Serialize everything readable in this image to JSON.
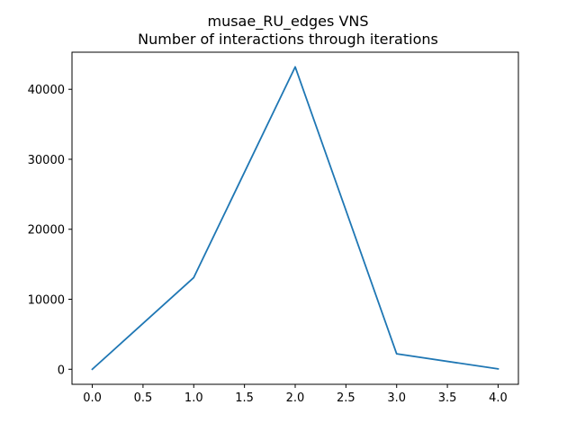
{
  "chart_data": {
    "type": "line",
    "title_line1": "musae_RU_edges VNS",
    "title_line2": "Number of interactions through iterations",
    "xlabel": "",
    "ylabel": "",
    "xlim": [
      -0.2,
      4.2
    ],
    "ylim": [
      -2150,
      45300
    ],
    "x_ticks": [
      0.0,
      0.5,
      1.0,
      1.5,
      2.0,
      2.5,
      3.0,
      3.5,
      4.0
    ],
    "x_tick_labels": [
      "0.0",
      "0.5",
      "1.0",
      "1.5",
      "2.0",
      "2.5",
      "3.0",
      "3.5",
      "4.0"
    ],
    "y_ticks": [
      0,
      10000,
      20000,
      30000,
      40000
    ],
    "y_tick_labels": [
      "0",
      "10000",
      "20000",
      "30000",
      "40000"
    ],
    "grid": false,
    "series": [
      {
        "color": "#1f77b4",
        "x": [
          0,
          1,
          2,
          3,
          4
        ],
        "values": [
          0,
          13100,
          43200,
          2200,
          50
        ]
      }
    ]
  }
}
